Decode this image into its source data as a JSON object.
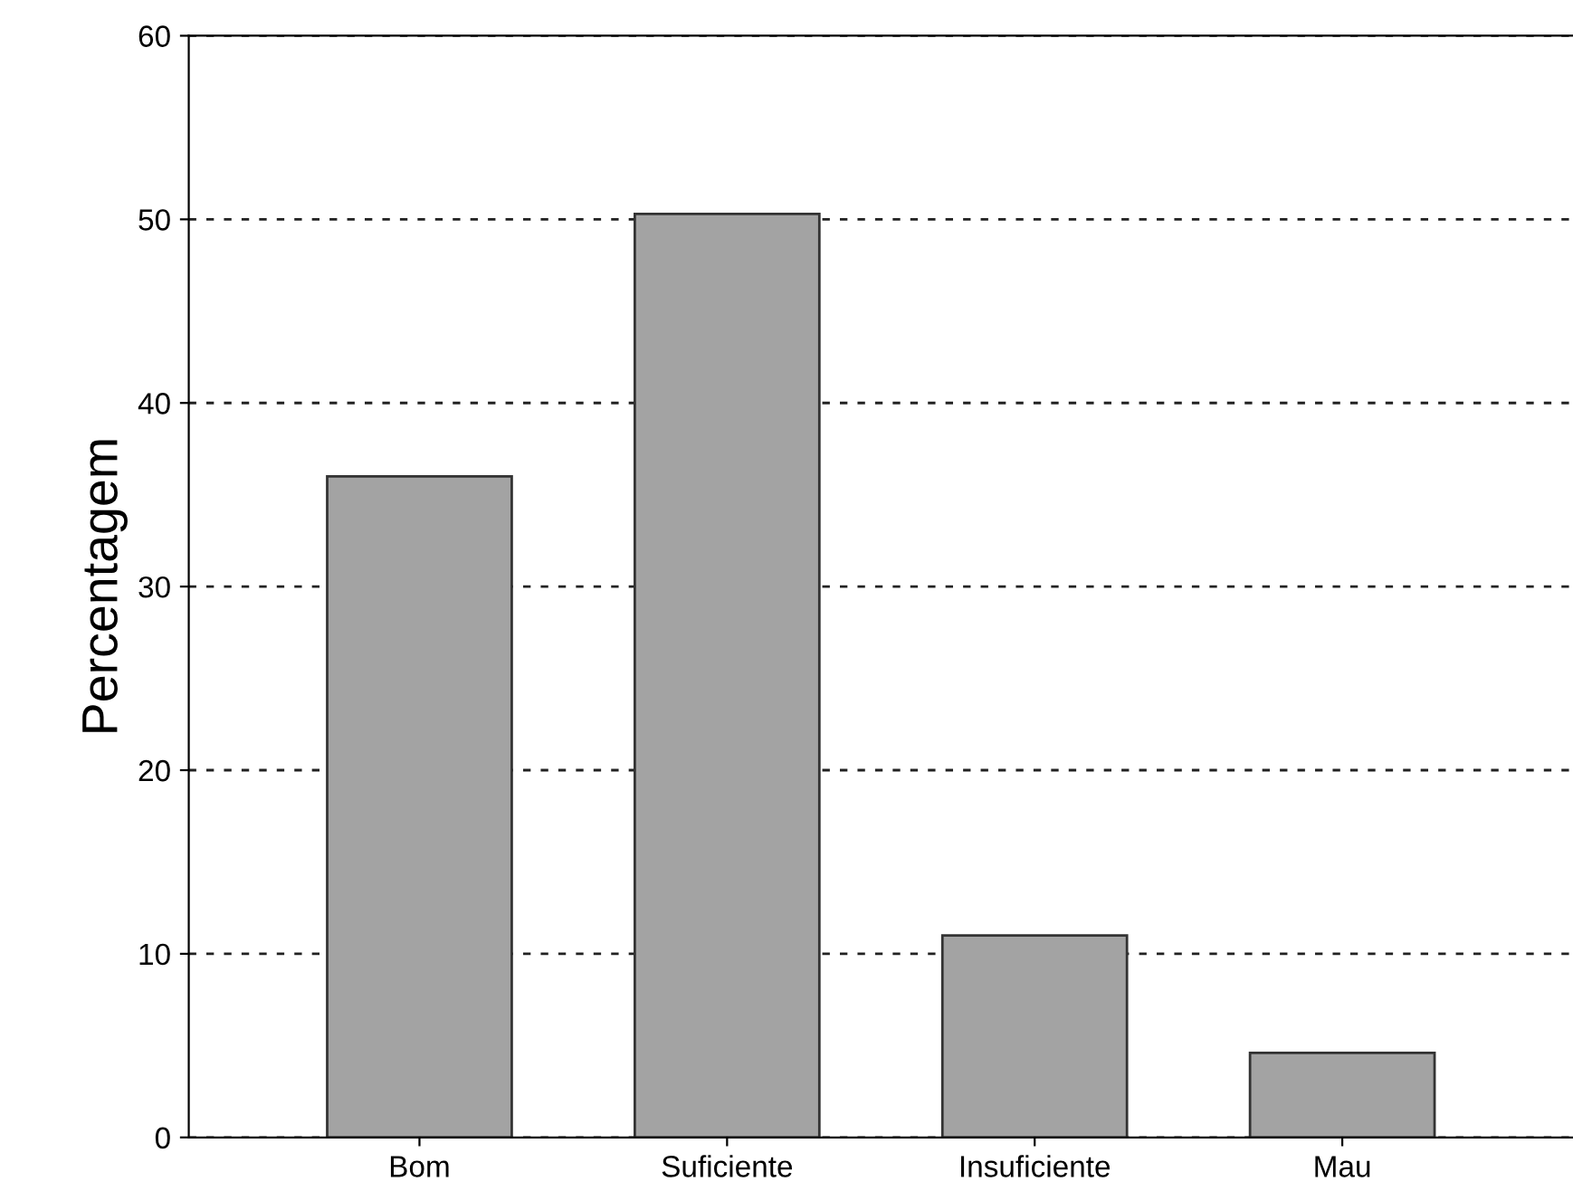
{
  "chart_data": {
    "type": "bar",
    "ylabel": "Percentagem",
    "categories": [
      "Bom",
      "Suficiente",
      "Insuficiente",
      "Mau"
    ],
    "values": [
      36,
      50.3,
      11,
      4.6
    ],
    "color": "#a3a3a3",
    "ylim": [
      0,
      60
    ],
    "yticks": [
      0,
      10,
      20,
      30,
      40,
      50,
      60
    ],
    "grid": "y"
  }
}
